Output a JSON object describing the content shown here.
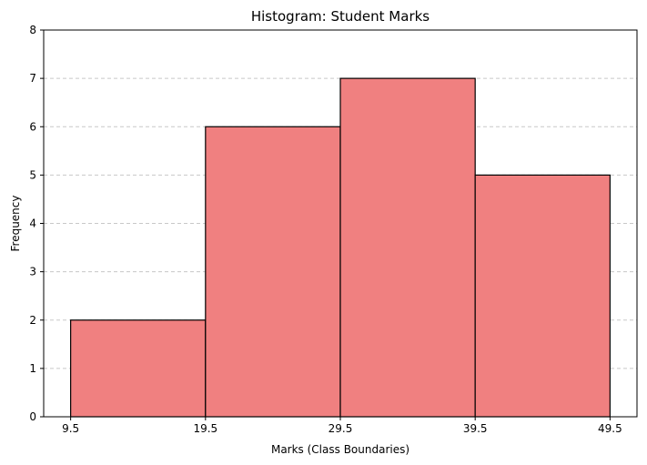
{
  "chart_data": {
    "type": "bar",
    "title": "Histogram: Student Marks",
    "xlabel": "Marks (Class Boundaries)",
    "ylabel": "Frequency",
    "bins": [
      {
        "start": 9.5,
        "end": 19.5,
        "value": 2
      },
      {
        "start": 19.5,
        "end": 29.5,
        "value": 6
      },
      {
        "start": 29.5,
        "end": 39.5,
        "value": 7
      },
      {
        "start": 39.5,
        "end": 49.5,
        "value": 5
      }
    ],
    "xticks": [
      "9.5",
      "19.5",
      "29.5",
      "39.5",
      "49.5"
    ],
    "xtick_values": [
      9.5,
      19.5,
      29.5,
      39.5,
      49.5
    ],
    "yticks": [
      "0",
      "1",
      "2",
      "3",
      "4",
      "5",
      "6",
      "7",
      "8"
    ],
    "xlim": [
      7.5,
      51.5
    ],
    "ylim": [
      0,
      8
    ],
    "grid": "y-dashed",
    "bar_color": "#F08080",
    "edge_color": "#000000",
    "grid_color": "#c8c8c8"
  }
}
